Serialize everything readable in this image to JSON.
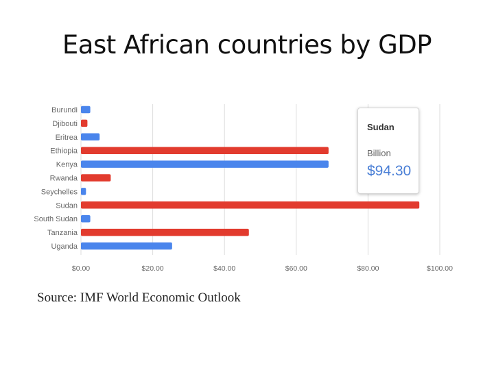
{
  "title": "East African countries by GDP",
  "source": "Source: IMF World Economic Outlook",
  "colors": {
    "blue": "#4a85ec",
    "red": "#e23b2e",
    "grid": "#dddddd"
  },
  "tooltip": {
    "name": "Sudan",
    "unit": "Billion",
    "value": "$94.30"
  },
  "chart_data": {
    "type": "bar",
    "orientation": "horizontal",
    "title": "",
    "xlabel": "",
    "ylabel": "",
    "xlim": [
      0,
      100
    ],
    "grid": true,
    "x_ticks": [
      "$0.00",
      "$20.00",
      "$40.00",
      "$60.00",
      "$80.00",
      "$100.00"
    ],
    "categories": [
      "Burundi",
      "Djibouti",
      "Eritrea",
      "Ethiopia",
      "Kenya",
      "Rwanda",
      "Seychelles",
      "Sudan",
      "South Sudan",
      "Tanzania",
      "Uganda"
    ],
    "values": [
      2.6,
      1.8,
      5.2,
      69.0,
      69.0,
      8.3,
      1.4,
      94.3,
      2.6,
      46.8,
      25.4
    ],
    "bar_colors": [
      "blue",
      "red",
      "blue",
      "red",
      "blue",
      "red",
      "blue",
      "red",
      "blue",
      "red",
      "blue"
    ]
  }
}
